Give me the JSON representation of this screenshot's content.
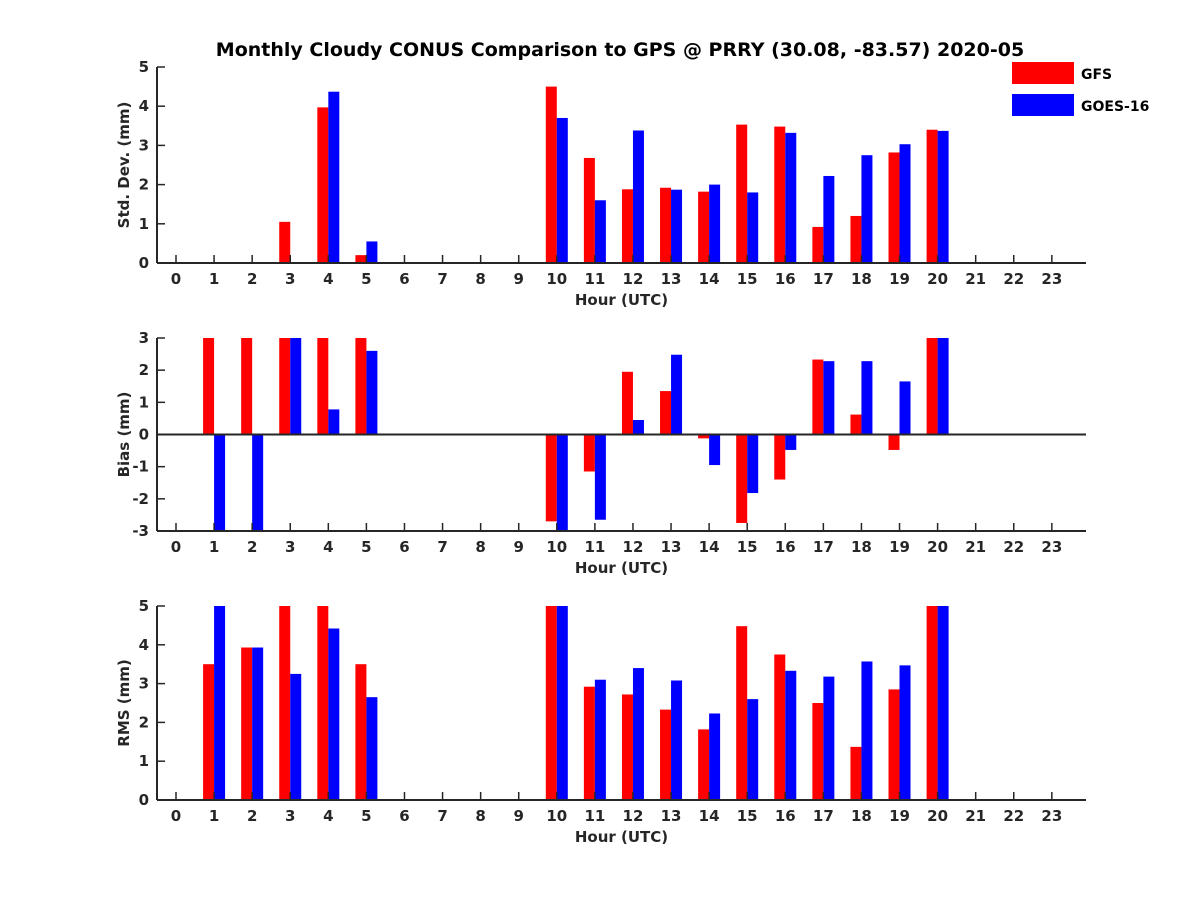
{
  "figure": {
    "title": "Monthly Cloudy CONUS Comparison to GPS @ PRRY (30.08, -83.57) 2020-05"
  },
  "legend": {
    "placement": "top-right",
    "entries": [
      {
        "name": "GFS",
        "color": "#ff0000"
      },
      {
        "name": "GOES-16",
        "color": "#0000ff"
      }
    ]
  },
  "chart_data": [
    {
      "type": "bar",
      "name": "std",
      "xlabel": "Hour (UTC)",
      "ylabel": "Std. Dev. (mm)",
      "ylim": [
        0,
        5
      ],
      "yticks": [
        0,
        1,
        2,
        3,
        4,
        5
      ],
      "categories": [
        0,
        1,
        2,
        3,
        4,
        5,
        6,
        7,
        8,
        9,
        10,
        11,
        12,
        13,
        14,
        15,
        16,
        17,
        18,
        19,
        20,
        21,
        22,
        23
      ],
      "series": [
        {
          "name": "GFS",
          "color": "#ff0000",
          "values": [
            null,
            null,
            null,
            1.05,
            3.97,
            0.2,
            null,
            null,
            null,
            null,
            4.5,
            2.68,
            1.88,
            1.92,
            1.82,
            3.53,
            3.48,
            0.92,
            1.2,
            2.82,
            3.4,
            null,
            null,
            null
          ]
        },
        {
          "name": "GOES-16",
          "color": "#0000ff",
          "values": [
            null,
            null,
            null,
            null,
            4.37,
            0.55,
            null,
            null,
            null,
            null,
            3.7,
            1.6,
            3.38,
            1.87,
            2.0,
            1.8,
            3.32,
            2.22,
            2.75,
            3.03,
            3.37,
            null,
            null,
            null
          ]
        }
      ]
    },
    {
      "type": "bar",
      "name": "bias",
      "xlabel": "Hour (UTC)",
      "ylabel": "Bias (mm)",
      "ylim": [
        -3,
        3
      ],
      "yticks": [
        -3,
        -2,
        -1,
        0,
        1,
        2,
        3
      ],
      "categories": [
        0,
        1,
        2,
        3,
        4,
        5,
        6,
        7,
        8,
        9,
        10,
        11,
        12,
        13,
        14,
        15,
        16,
        17,
        18,
        19,
        20,
        21,
        22,
        23
      ],
      "series": [
        {
          "name": "GFS",
          "color": "#ff0000",
          "values": [
            null,
            3,
            3,
            3,
            3,
            3,
            null,
            null,
            null,
            null,
            -2.7,
            -1.15,
            1.95,
            1.35,
            -0.12,
            -2.75,
            -1.4,
            2.33,
            0.62,
            -0.48,
            3,
            null,
            null,
            null
          ]
        },
        {
          "name": "GOES-16",
          "color": "#0000ff",
          "values": [
            null,
            -3,
            -3,
            3,
            0.78,
            2.6,
            null,
            null,
            null,
            null,
            -3,
            -2.65,
            0.45,
            2.48,
            -0.95,
            -1.82,
            -0.48,
            2.28,
            2.28,
            1.65,
            3,
            null,
            null,
            null
          ]
        }
      ]
    },
    {
      "type": "bar",
      "name": "rms",
      "xlabel": "Hour (UTC)",
      "ylabel": "RMS (mm)",
      "ylim": [
        0,
        5
      ],
      "yticks": [
        0,
        1,
        2,
        3,
        4,
        5
      ],
      "categories": [
        0,
        1,
        2,
        3,
        4,
        5,
        6,
        7,
        8,
        9,
        10,
        11,
        12,
        13,
        14,
        15,
        16,
        17,
        18,
        19,
        20,
        21,
        22,
        23
      ],
      "series": [
        {
          "name": "GFS",
          "color": "#ff0000",
          "values": [
            null,
            3.5,
            3.93,
            5,
            5,
            3.5,
            null,
            null,
            null,
            null,
            5,
            2.92,
            2.72,
            2.33,
            1.82,
            4.48,
            3.75,
            2.5,
            1.37,
            2.85,
            5,
            null,
            null,
            null
          ]
        },
        {
          "name": "GOES-16",
          "color": "#0000ff",
          "values": [
            null,
            5,
            3.93,
            3.25,
            4.42,
            2.65,
            null,
            null,
            null,
            null,
            5,
            3.1,
            3.4,
            3.08,
            2.23,
            2.6,
            3.33,
            3.18,
            3.57,
            3.47,
            5,
            null,
            null,
            null
          ]
        }
      ]
    }
  ]
}
